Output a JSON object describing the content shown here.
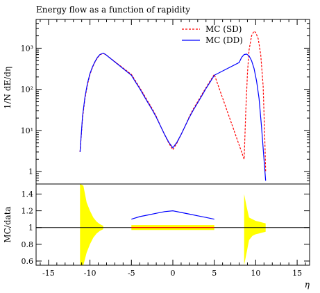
{
  "chart_data": [
    {
      "type": "line",
      "panel": "main",
      "title": "Energy flow as a function of rapidity",
      "ylabel": "1/N dE/dη",
      "yscale": "log",
      "ylim": [
        0.5,
        5000
      ],
      "xlim": [
        -16.5,
        16.5
      ],
      "yticks": [
        {
          "value": 1,
          "label": "1"
        },
        {
          "value": 10,
          "label": "10¹"
        },
        {
          "value": 100,
          "label": "10²"
        },
        {
          "value": 1000,
          "label": "10³"
        }
      ],
      "legend": {
        "placement": "top-right"
      },
      "series": [
        {
          "name": "MC (SD)",
          "color": "#ff0000",
          "style": "dashed",
          "x": [
            -11.2,
            -10.9,
            -10.6,
            -10.3,
            -10.0,
            -9.7,
            -9.4,
            -9.1,
            -8.8,
            -8.4,
            -8.1,
            -5.0,
            -4.5,
            -4.0,
            -3.5,
            -3.0,
            -2.5,
            -2.0,
            -1.5,
            -1.0,
            -0.5,
            0.0,
            0.5,
            1.0,
            1.5,
            2.0,
            2.5,
            3.0,
            3.5,
            4.0,
            4.5,
            5.0,
            8.6,
            8.8,
            9.0,
            9.2,
            9.5,
            9.8,
            10.0,
            10.3,
            10.6,
            10.9,
            11.1,
            11.2
          ],
          "y": [
            3,
            20,
            60,
            130,
            230,
            340,
            460,
            580,
            690,
            750,
            700,
            230,
            160,
            110,
            75,
            50,
            34,
            22,
            13,
            8,
            5,
            3.4,
            5,
            8,
            13,
            22,
            34,
            50,
            75,
            110,
            160,
            230,
            2,
            30,
            250,
            900,
            2000,
            2600,
            2400,
            1700,
            700,
            120,
            6,
            1
          ]
        },
        {
          "name": "MC (DD)",
          "color": "#0000ff",
          "style": "solid",
          "x": [
            -11.2,
            -10.9,
            -10.6,
            -10.3,
            -10.0,
            -9.7,
            -9.4,
            -9.1,
            -8.8,
            -8.4,
            -8.1,
            -5.0,
            -4.5,
            -4.0,
            -3.5,
            -3.0,
            -2.5,
            -2.0,
            -1.5,
            -1.0,
            -0.5,
            0.0,
            0.5,
            1.0,
            1.5,
            2.0,
            2.5,
            3.0,
            3.5,
            4.0,
            4.5,
            5.0,
            8.0,
            8.3,
            8.6,
            8.9,
            9.2,
            9.5,
            9.8,
            10.1,
            10.4,
            10.7,
            11.0,
            11.2
          ],
          "y": [
            3,
            22,
            65,
            140,
            240,
            350,
            470,
            600,
            700,
            760,
            700,
            220,
            150,
            105,
            70,
            47,
            32,
            21,
            13,
            8,
            5.2,
            3.8,
            5.2,
            8,
            13,
            21,
            32,
            47,
            70,
            105,
            150,
            220,
            450,
            600,
            700,
            720,
            650,
            500,
            320,
            160,
            60,
            12,
            2,
            0.6
          ]
        }
      ]
    },
    {
      "type": "line",
      "panel": "ratio",
      "ylabel": "MC/data",
      "xlabel": "η",
      "ylim": [
        0.55,
        1.52
      ],
      "xlim": [
        -16.5,
        16.5
      ],
      "xticks": [
        -15,
        -10,
        -5,
        0,
        5,
        10,
        15
      ],
      "yticks": [
        0.6,
        0.8,
        1,
        1.2,
        1.4
      ],
      "reference_line": 1,
      "uncertainty_band": {
        "color": "#ffff00",
        "segments": [
          {
            "x": [
              -11.2,
              -10.8,
              -10.4,
              -10.0,
              -9.6,
              -9.2,
              -8.8,
              -8.4
            ],
            "lo": [
              0.5,
              0.55,
              0.7,
              0.8,
              0.88,
              0.93,
              0.96,
              0.98
            ],
            "hi": [
              1.55,
              1.5,
              1.3,
              1.2,
              1.12,
              1.07,
              1.04,
              1.02
            ]
          },
          {
            "x": [
              -5.0,
              5.0
            ],
            "lo": [
              0.97,
              0.97
            ],
            "hi": [
              1.03,
              1.03
            ]
          },
          {
            "x": [
              8.6,
              8.9,
              9.2,
              9.6,
              10.0,
              10.4,
              10.8,
              11.2
            ],
            "lo": [
              0.55,
              0.7,
              0.85,
              0.9,
              0.92,
              0.93,
              0.94,
              0.95
            ],
            "hi": [
              1.4,
              1.25,
              1.12,
              1.1,
              1.08,
              1.07,
              1.06,
              1.05
            ]
          }
        ]
      },
      "series": [
        {
          "name": "MC (SD)",
          "color": "#ff0000",
          "x": [
            -5.0,
            -4.0,
            -3.0,
            -2.0,
            -1.0,
            0.0,
            1.0,
            2.0,
            3.0,
            4.0,
            5.0
          ],
          "y": [
            1.0,
            1.0,
            1.0,
            1.0,
            1.0,
            1.0,
            1.0,
            1.0,
            1.0,
            1.0,
            1.0
          ]
        },
        {
          "name": "MC (DD)",
          "color": "#0000ff",
          "x": [
            -5.0,
            -4.0,
            -3.0,
            -2.0,
            -1.0,
            0.0,
            1.0,
            2.0,
            3.0,
            4.0,
            5.0
          ],
          "y": [
            1.1,
            1.13,
            1.15,
            1.17,
            1.19,
            1.2,
            1.18,
            1.16,
            1.14,
            1.12,
            1.1
          ]
        }
      ]
    }
  ]
}
